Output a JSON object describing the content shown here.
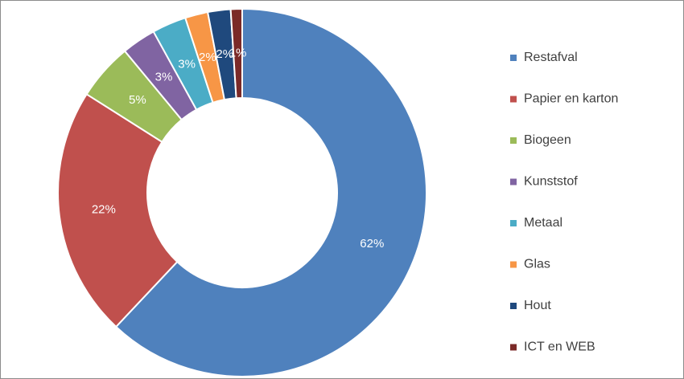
{
  "chart_data": {
    "type": "donut",
    "categories": [
      "Restafval",
      "Papier en karton",
      "Biogeen",
      "Kunststof",
      "Metaal",
      "Glas",
      "Hout",
      "ICT en WEB"
    ],
    "values": [
      62,
      22,
      5,
      3,
      3,
      2,
      2,
      1
    ],
    "value_labels": [
      "62%",
      "22%",
      "5%",
      "3%",
      "3%",
      "2%",
      "2%",
      "1%"
    ],
    "colors": [
      "#4f81bd",
      "#c0504d",
      "#9bbb59",
      "#8064a2",
      "#4bacc6",
      "#f79646",
      "#1f497d",
      "#7b2a28"
    ],
    "legend": "right"
  }
}
